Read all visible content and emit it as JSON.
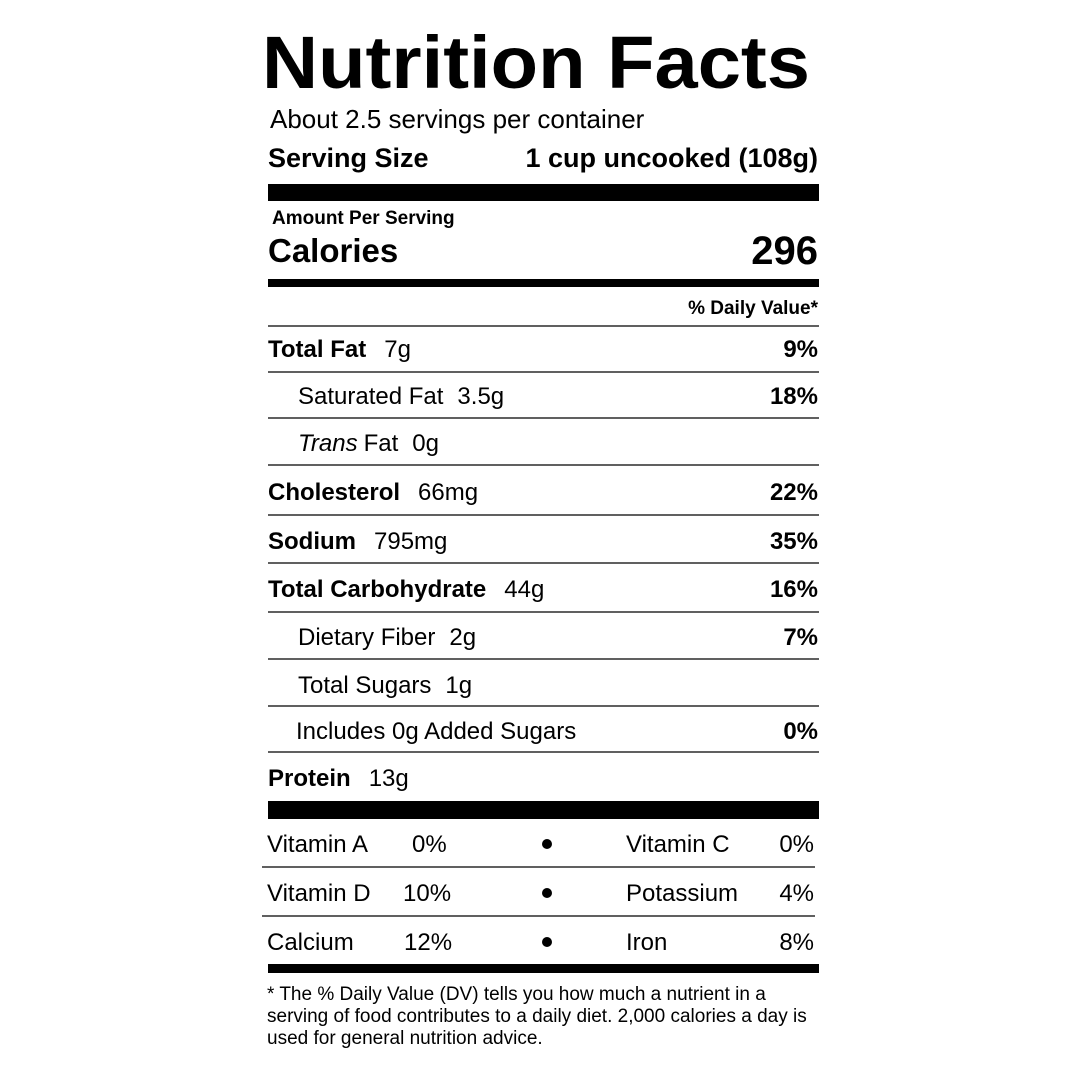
{
  "title": "Nutrition Facts",
  "servings": "About 2.5 servings per container",
  "serving_size": {
    "label": "Serving Size",
    "value": "1 cup uncooked (108g)"
  },
  "amount_per_serving": "Amount Per Serving",
  "calories": {
    "label": "Calories",
    "value": "296"
  },
  "daily_value_header": "% Daily Value*",
  "nutrients": [
    {
      "name": "Total Fat",
      "amount": "7g",
      "dv": "9%"
    },
    {
      "name": "Saturated Fat",
      "amount": "3.5g",
      "dv": "18%"
    },
    {
      "name_prefix": "Trans",
      "name": "Fat",
      "amount": "0g"
    },
    {
      "name": "Cholesterol",
      "amount": "66mg",
      "dv": "22%"
    },
    {
      "name": "Sodium",
      "amount": "795mg",
      "dv": "35%"
    },
    {
      "name": "Total Carbohydrate",
      "amount": "44g",
      "dv": "16%"
    },
    {
      "name": "Dietary Fiber",
      "amount": "2g",
      "dv": "7%"
    },
    {
      "name": "Total Sugars",
      "amount": "1g"
    },
    {
      "name": "Includes 0g Added Sugars",
      "dv": "0%"
    },
    {
      "name": "Protein",
      "amount": "13g"
    }
  ],
  "vitamins": [
    [
      {
        "name": "Vitamin A",
        "dv": "0%"
      },
      {
        "name": "Vitamin C",
        "dv": "0%"
      }
    ],
    [
      {
        "name": "Vitamin D",
        "dv": "10%"
      },
      {
        "name": "Potassium",
        "dv": "4%"
      }
    ],
    [
      {
        "name": "Calcium",
        "dv": "12%"
      },
      {
        "name": "Iron",
        "dv": "8%"
      }
    ]
  ],
  "footnote": "* The % Daily Value (DV) tells you how much a nutrient in a serving of food contributes to a daily diet. 2,000 calories a day is used for general nutrition advice."
}
